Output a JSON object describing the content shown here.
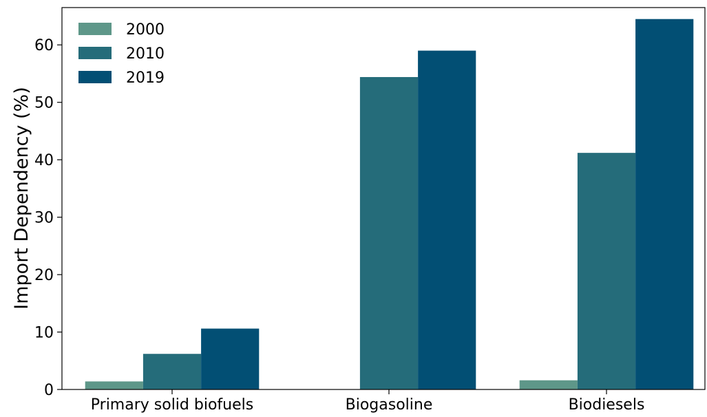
{
  "chart_data": {
    "type": "bar",
    "title": "",
    "xlabel": "",
    "ylabel": "Import Dependency (%)",
    "categories": [
      "Primary solid biofuels",
      "Biogasoline",
      "Biodiesels"
    ],
    "series": [
      {
        "name": "2000",
        "values": [
          1.4,
          0.0,
          1.6
        ],
        "color": "#5e9789"
      },
      {
        "name": "2010",
        "values": [
          6.2,
          54.4,
          41.2
        ],
        "color": "#256c7a"
      },
      {
        "name": "2019",
        "values": [
          10.6,
          59.0,
          64.5
        ],
        "color": "#024f74"
      }
    ],
    "ylim": [
      0,
      66.5
    ],
    "yticks": [
      0,
      10,
      20,
      30,
      40,
      50,
      60
    ],
    "grid": false,
    "legend_position": "top-left"
  }
}
